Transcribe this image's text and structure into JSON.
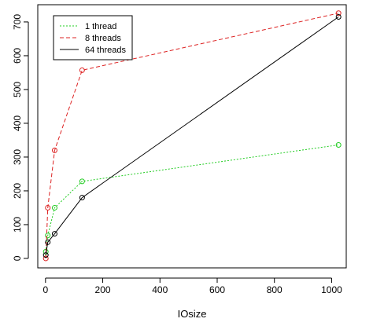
{
  "chart_data": {
    "type": "line",
    "title": "",
    "xlabel": "IOsize",
    "ylabel": "",
    "xlim": [
      -27,
      1051
    ],
    "ylim": [
      -28,
      751
    ],
    "xticks": [
      0,
      200,
      400,
      600,
      800,
      1000
    ],
    "yticks": [
      0,
      100,
      200,
      300,
      400,
      500,
      600,
      700
    ],
    "grid": false,
    "legend_position": "top-left",
    "series": [
      {
        "name": "1 thread",
        "color": "#22cc22",
        "dash": "dotted",
        "x": [
          1,
          8,
          32,
          128,
          1024
        ],
        "y": [
          20,
          68,
          150,
          228,
          336
        ]
      },
      {
        "name": "8 threads",
        "color": "#dd2222",
        "dash": "dashed",
        "x": [
          1,
          8,
          32,
          128,
          1024
        ],
        "y": [
          0,
          150,
          320,
          557,
          726
        ]
      },
      {
        "name": "64 threads",
        "color": "#000000",
        "dash": "solid",
        "x": [
          1,
          8,
          32,
          128,
          1024
        ],
        "y": [
          10,
          48,
          73,
          180,
          715
        ]
      }
    ]
  }
}
